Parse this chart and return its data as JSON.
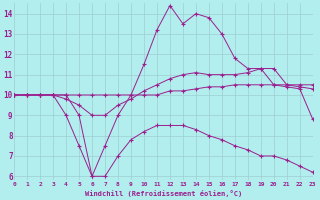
{
  "xlabel": "Windchill (Refroidissement éolien,°C)",
  "background_color": "#b2eeee",
  "line_color": "#9b1f8e",
  "xmin": 0,
  "xmax": 23,
  "ymin": 5.8,
  "ymax": 14.5,
  "yticks": [
    6,
    7,
    8,
    9,
    10,
    11,
    12,
    13,
    14
  ],
  "xticks": [
    0,
    1,
    2,
    3,
    4,
    5,
    6,
    7,
    8,
    9,
    10,
    11,
    12,
    13,
    14,
    15,
    16,
    17,
    18,
    19,
    20,
    21,
    22,
    23
  ],
  "lines": [
    {
      "x": [
        0,
        1,
        2,
        3,
        4,
        5,
        6,
        7,
        8,
        9,
        10,
        11,
        12,
        13,
        14,
        15,
        16,
        17,
        18,
        19,
        20,
        21,
        22,
        23
      ],
      "y": [
        10,
        10,
        10,
        10,
        10,
        9.0,
        6.0,
        7.5,
        9.0,
        10.0,
        11.5,
        13.2,
        14.4,
        13.5,
        14.0,
        13.8,
        13.0,
        11.8,
        11.3,
        11.3,
        10.5,
        10.4,
        10.3,
        8.8
      ]
    },
    {
      "x": [
        0,
        1,
        2,
        3,
        4,
        5,
        6,
        7,
        8,
        9,
        10,
        11,
        12,
        13,
        14,
        15,
        16,
        17,
        18,
        19,
        20,
        21,
        22,
        23
      ],
      "y": [
        10,
        10,
        10,
        10,
        9.8,
        9.5,
        9.0,
        9.0,
        9.5,
        9.8,
        10.2,
        10.5,
        10.8,
        11.0,
        11.1,
        11.0,
        11.0,
        11.0,
        11.1,
        11.3,
        11.3,
        10.5,
        10.4,
        10.3
      ]
    },
    {
      "x": [
        0,
        1,
        2,
        3,
        4,
        5,
        6,
        7,
        8,
        9,
        10,
        11,
        12,
        13,
        14,
        15,
        16,
        17,
        18,
        19,
        20,
        21,
        22,
        23
      ],
      "y": [
        10,
        10,
        10,
        10,
        9.0,
        7.5,
        6.0,
        6.0,
        7.0,
        7.8,
        8.2,
        8.5,
        8.5,
        8.5,
        8.3,
        8.0,
        7.8,
        7.5,
        7.3,
        7.0,
        7.0,
        6.8,
        6.5,
        6.2
      ]
    },
    {
      "x": [
        0,
        1,
        2,
        3,
        4,
        5,
        6,
        7,
        8,
        9,
        10,
        11,
        12,
        13,
        14,
        15,
        16,
        17,
        18,
        19,
        20,
        21,
        22,
        23
      ],
      "y": [
        10,
        10,
        10,
        10,
        10,
        10,
        10,
        10,
        10,
        10,
        10,
        10.0,
        10.2,
        10.2,
        10.3,
        10.4,
        10.4,
        10.5,
        10.5,
        10.5,
        10.5,
        10.5,
        10.5,
        10.5
      ]
    }
  ]
}
